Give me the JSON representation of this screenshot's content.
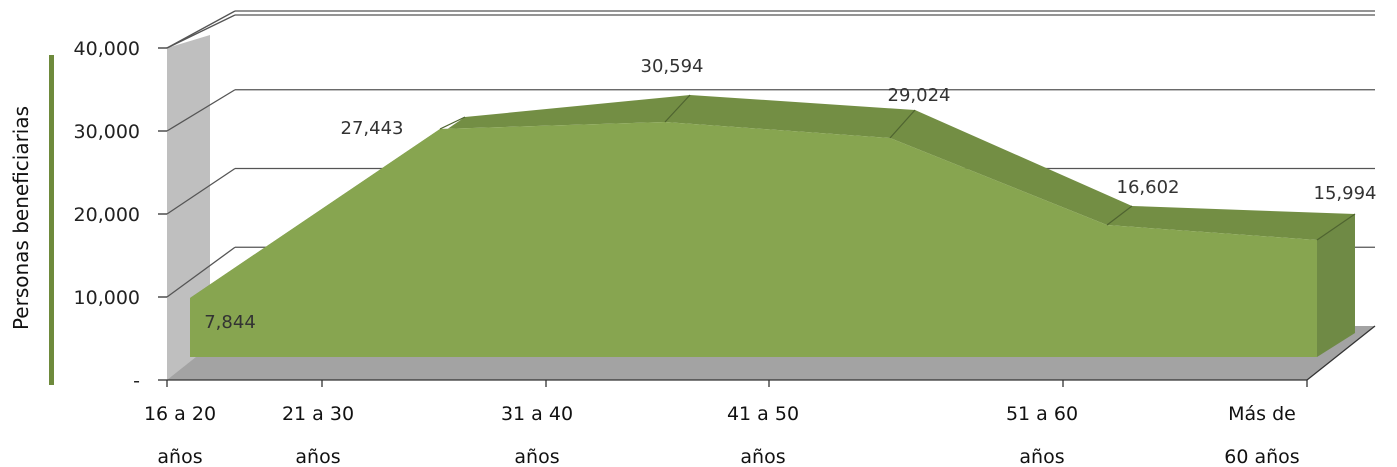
{
  "chart_data": {
    "type": "area",
    "ylabel": "Personas beneficiarias",
    "ylim": [
      0,
      40000
    ],
    "grid": true,
    "yticks": [
      {
        "value": 0,
        "label": "-"
      },
      {
        "value": 10000,
        "label": "10,000"
      },
      {
        "value": 20000,
        "label": "20,000"
      },
      {
        "value": 30000,
        "label": "30,000"
      },
      {
        "value": 40000,
        "label": "40,000"
      }
    ],
    "categories": [
      [
        "16 a 20",
        "años"
      ],
      [
        "21 a 30",
        "años"
      ],
      [
        "31 a 40",
        "años"
      ],
      [
        "41 a 50",
        "años"
      ],
      [
        "51 a 60",
        "años"
      ],
      [
        "Más de",
        "60 años"
      ]
    ],
    "data_labels": [
      "7,844",
      "27,443",
      "30,594",
      "29,024",
      "16,602",
      "15,994"
    ],
    "values": [
      7844,
      27443,
      30594,
      29024,
      16602,
      15994
    ],
    "colors": {
      "area_front": "#87a550",
      "area_top": "#738e44",
      "area_side": "#6f8a45",
      "floor": "#a3a3a3",
      "wall": "#bfbfbf",
      "grid": "#555555",
      "ylabel_bar": "#6e8a3c"
    }
  }
}
